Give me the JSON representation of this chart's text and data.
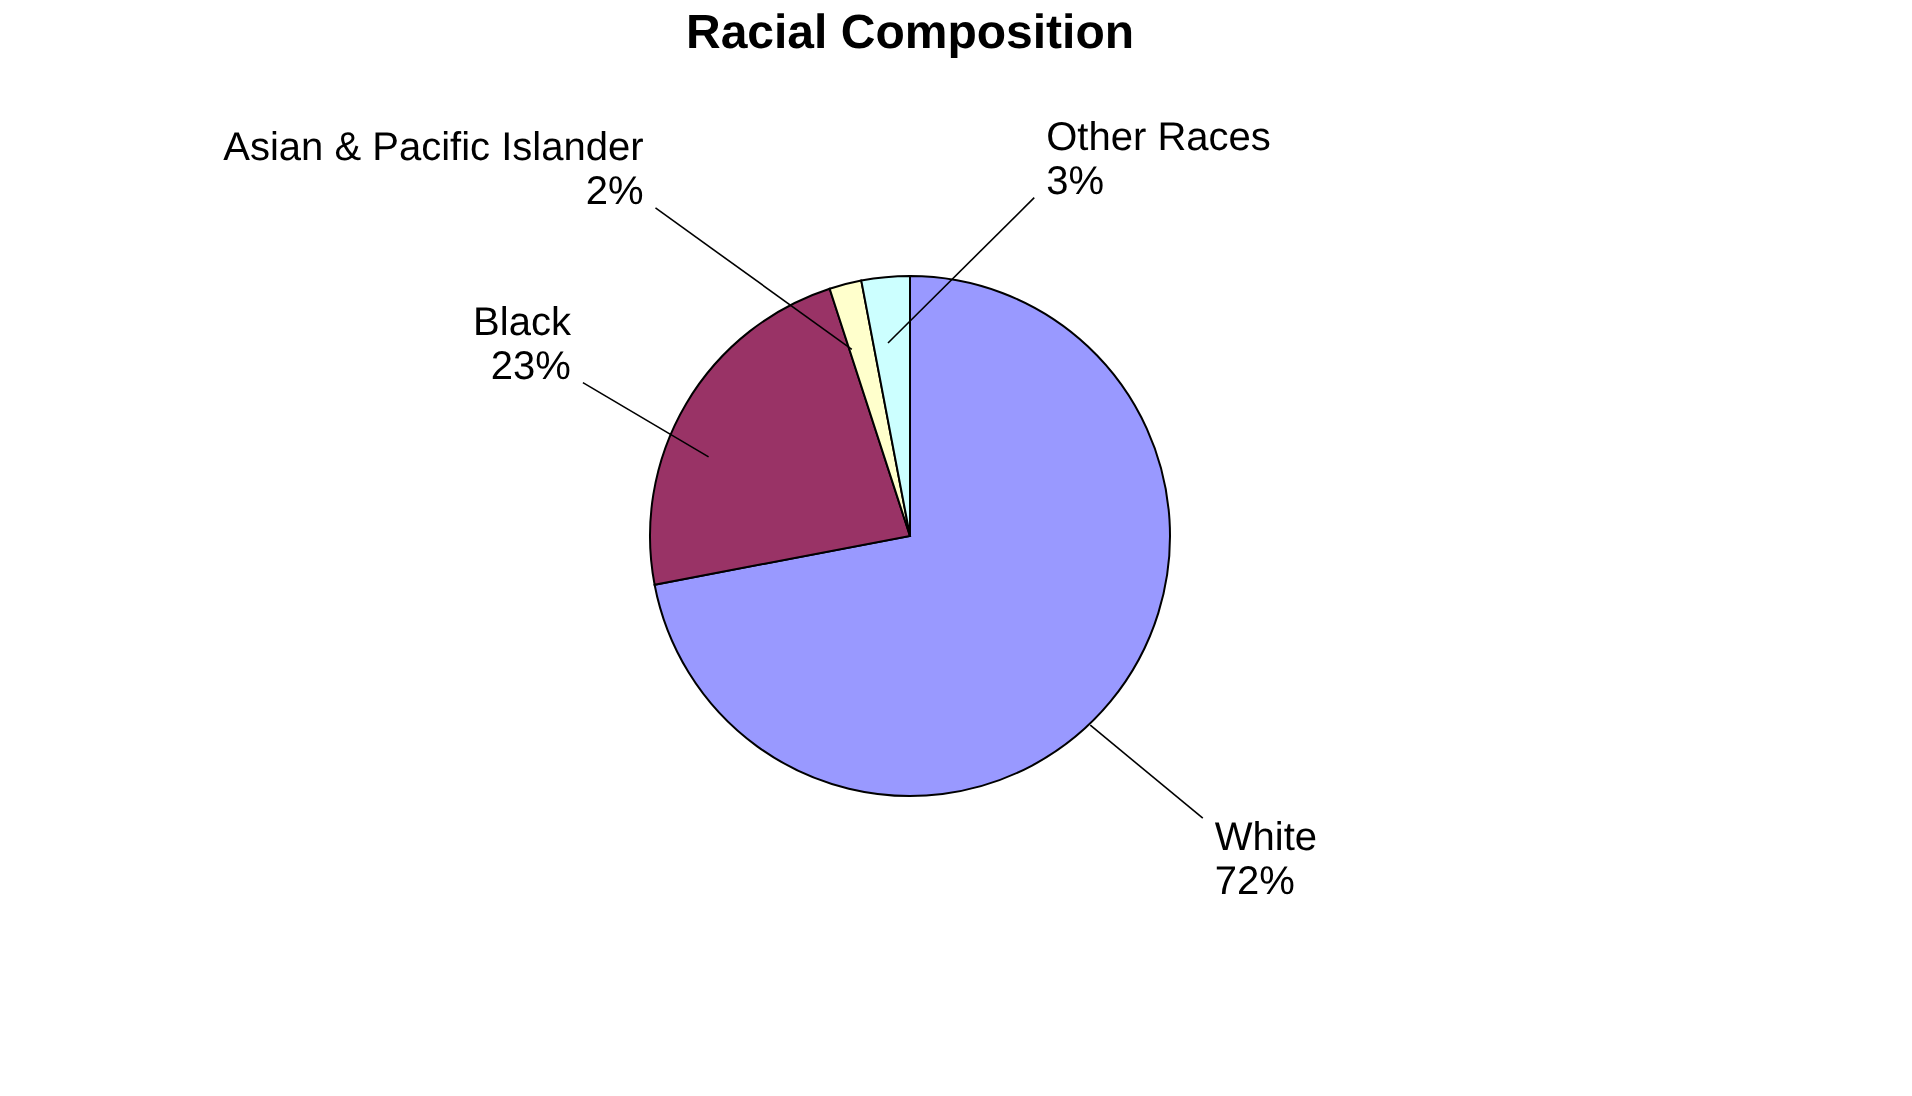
{
  "chart_data": {
    "type": "pie",
    "title": "Racial Composition",
    "categories": [
      "White",
      "Black",
      "Asian & Pacific Islander",
      "Other Races"
    ],
    "values": [
      72,
      23,
      2,
      3
    ],
    "colors": [
      "#9999ff",
      "#993366",
      "#ffffcc",
      "#ccffff"
    ],
    "value_labels": [
      "72%",
      "23%",
      "2%",
      "3%"
    ],
    "legend": false
  }
}
